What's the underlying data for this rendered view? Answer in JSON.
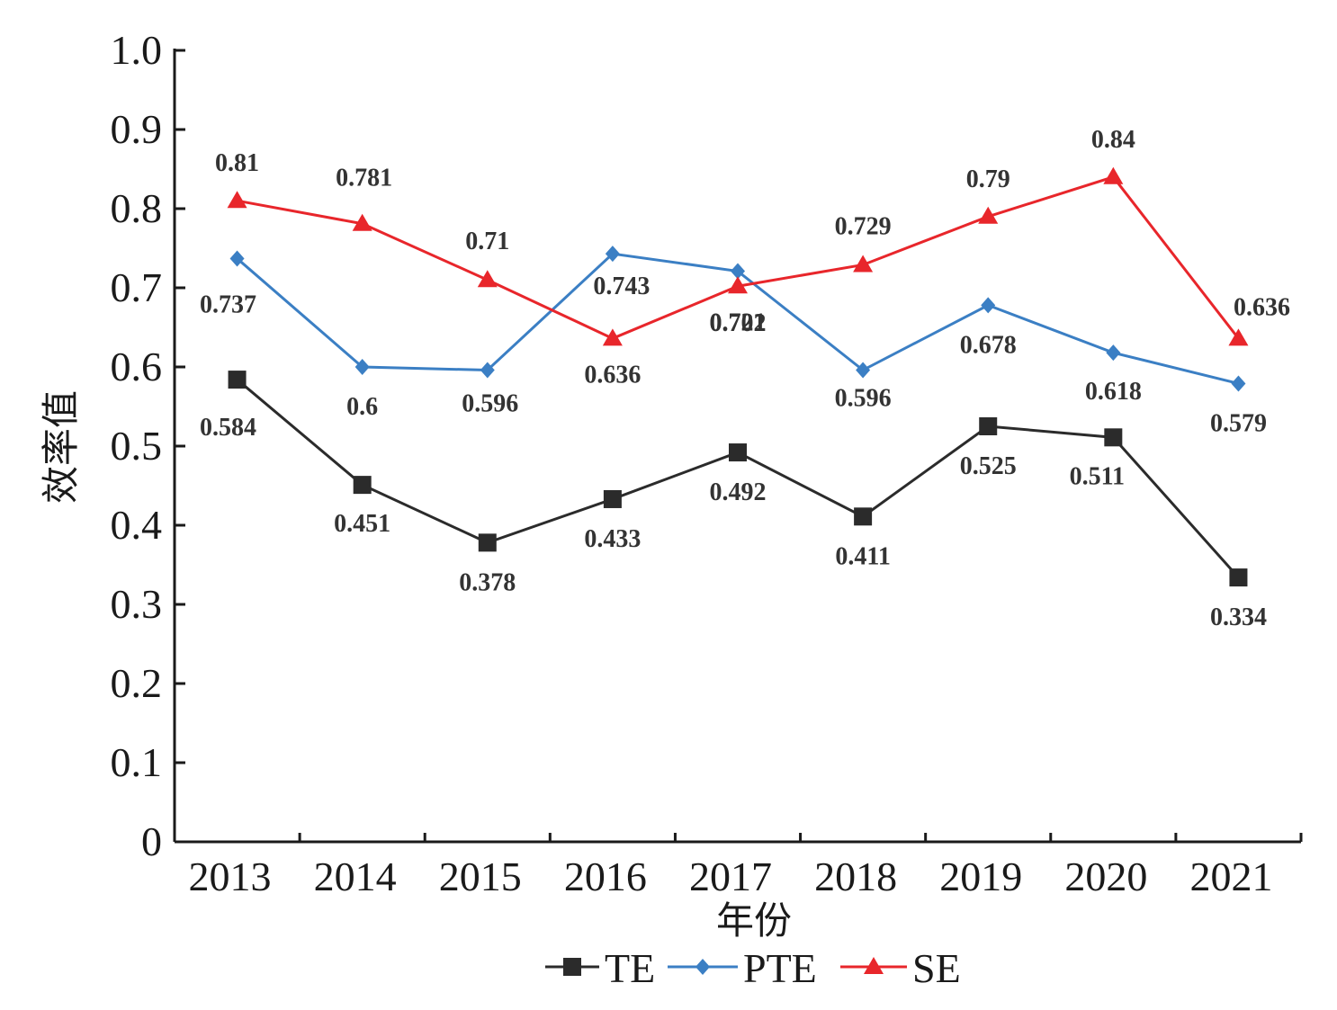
{
  "chart_data": {
    "type": "line",
    "xlabel": "年份",
    "ylabel": "效率值",
    "ylim": [
      0,
      1.0
    ],
    "yticks": [
      "0",
      "0.1",
      "0.2",
      "0.3",
      "0.4",
      "0.5",
      "0.6",
      "0.7",
      "0.8",
      "0.9",
      "1.0"
    ],
    "categories": [
      "2013",
      "2014",
      "2015",
      "2016",
      "2017",
      "2018",
      "2019",
      "2020",
      "2021"
    ],
    "grid": false,
    "legend_position": "bottom",
    "series": [
      {
        "name": "TE",
        "marker": "square",
        "color": "#2b2b2b",
        "values": [
          0.584,
          0.451,
          0.378,
          0.433,
          0.492,
          0.411,
          0.525,
          0.511,
          0.334
        ],
        "labels": [
          "0.584",
          "0.451",
          "0.378",
          "0.433",
          "0.492",
          "0.411",
          "0.525",
          "0.511",
          "0.334"
        ]
      },
      {
        "name": "PTE",
        "marker": "diamond",
        "color": "#3b7fc4",
        "values": [
          0.737,
          0.6,
          0.596,
          0.743,
          0.721,
          0.596,
          0.678,
          0.618,
          0.579
        ],
        "labels": [
          "0.737",
          "0.6",
          "0.596",
          "0.743",
          "0.721",
          "0.596",
          "0.678",
          "0.618",
          "0.579"
        ]
      },
      {
        "name": "SE",
        "marker": "triangle",
        "color": "#e8262b",
        "values": [
          0.81,
          0.781,
          0.71,
          0.636,
          0.702,
          0.729,
          0.79,
          0.84,
          0.636
        ],
        "labels": [
          "0.81",
          "0.781",
          "0.71",
          "0.636",
          "0.702",
          "0.729",
          "0.79",
          "0.84",
          "0.636"
        ]
      }
    ]
  }
}
